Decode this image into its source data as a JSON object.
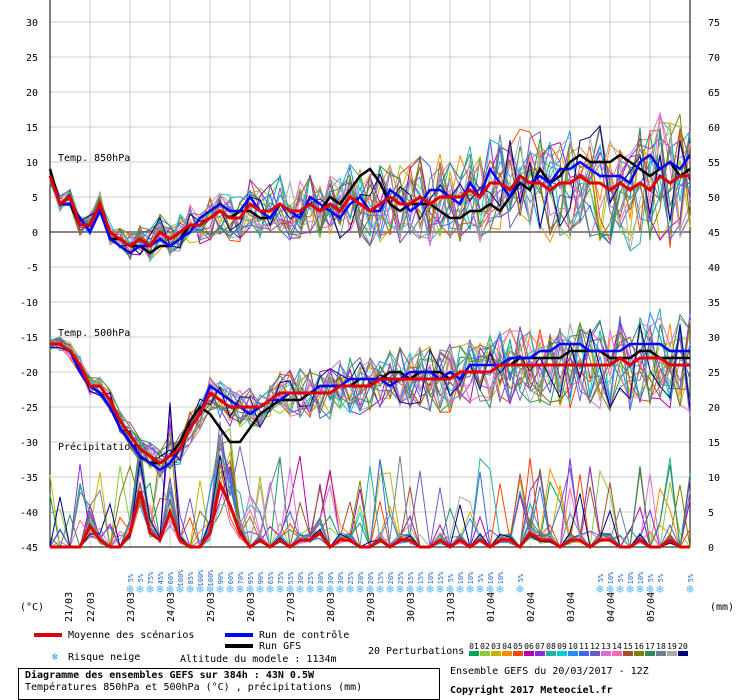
{
  "chart_data": {
    "type": "line",
    "title": "Diagramme des ensembles GEFS sur 384h : 43N 0.5W",
    "subtitle": "Températures 850hPa et 500hPa (°C) , précipitations (mm)",
    "left_axis_label": "(°C)",
    "right_axis_label": "(mm)",
    "left_ticks": [
      30,
      25,
      20,
      15,
      10,
      5,
      0,
      -5,
      -10,
      -15,
      -20,
      -25,
      -30,
      -35,
      -40,
      -45
    ],
    "right_ticks": [
      75,
      70,
      65,
      60,
      55,
      50,
      45,
      40,
      35,
      30,
      25,
      20,
      15,
      10,
      5,
      0
    ],
    "left_range": [
      -45,
      30
    ],
    "x_labels": [
      "21/03",
      "22/03",
      "23/03",
      "24/03",
      "25/03",
      "26/03",
      "27/03",
      "28/03",
      "29/03",
      "30/03",
      "31/03",
      "01/04",
      "02/04",
      "03/04",
      "04/04",
      "05/04"
    ],
    "section_labels": [
      "Temp. 850hPa",
      "Temp. 500hPa",
      "Précipitations"
    ],
    "mean_850": [
      8,
      4,
      5,
      1,
      1,
      4,
      0,
      -1,
      -2,
      -1,
      -2,
      0,
      -1,
      0,
      1,
      1,
      2,
      3,
      2,
      2,
      4,
      3,
      3,
      4,
      3,
      3,
      4,
      3,
      4,
      3,
      5,
      4,
      3,
      4,
      5,
      4,
      4,
      5,
      4,
      5,
      5,
      5,
      6,
      5,
      7,
      7,
      6,
      8,
      7,
      7,
      6,
      7,
      7,
      8,
      7,
      7,
      6,
      7,
      6,
      7,
      6,
      8,
      7,
      8,
      8
    ],
    "ctrl_850": [
      8,
      4,
      4,
      2,
      0,
      3,
      -1,
      -2,
      -3,
      -2,
      -2,
      -1,
      -2,
      -1,
      0,
      2,
      3,
      4,
      3,
      3,
      5,
      3,
      2,
      4,
      3,
      2,
      5,
      4,
      3,
      2,
      4,
      5,
      3,
      3,
      6,
      5,
      3,
      4,
      6,
      6,
      5,
      4,
      7,
      5,
      9,
      7,
      5,
      8,
      7,
      8,
      7,
      9,
      9,
      10,
      9,
      8,
      8,
      8,
      7,
      10,
      11,
      9,
      10,
      9,
      11
    ],
    "gfs_850": [
      9,
      4,
      4,
      1,
      1,
      4,
      -1,
      -1,
      -2,
      -2,
      -3,
      -2,
      -2,
      -1,
      1,
      1,
      2,
      3,
      2,
      3,
      3,
      2,
      2,
      4,
      3,
      3,
      4,
      3,
      5,
      4,
      6,
      8,
      9,
      7,
      4,
      3,
      4,
      4,
      4,
      3,
      2,
      2,
      3,
      3,
      4,
      3,
      5,
      7,
      6,
      9,
      7,
      8,
      10,
      11,
      10,
      10,
      10,
      11,
      10,
      9,
      8,
      9,
      10,
      8,
      9
    ],
    "mean_500": [
      -16,
      -16,
      -17,
      -19,
      -22,
      -22,
      -24,
      -27,
      -29,
      -31,
      -32,
      -33,
      -32,
      -31,
      -28,
      -26,
      -23,
      -24,
      -25,
      -25,
      -25,
      -25,
      -24,
      -23,
      -23,
      -23,
      -23,
      -23,
      -23,
      -22,
      -22,
      -22,
      -22,
      -21,
      -21,
      -21,
      -21,
      -21,
      -21,
      -21,
      -21,
      -20,
      -20,
      -20,
      -20,
      -19,
      -19,
      -19,
      -19,
      -19,
      -19,
      -19,
      -19,
      -19,
      -19,
      -19,
      -19,
      -18,
      -19,
      -18,
      -18,
      -18,
      -19,
      -19,
      -19
    ],
    "ctrl_500": [
      -16,
      -16,
      -17,
      -20,
      -22,
      -23,
      -25,
      -28,
      -30,
      -32,
      -33,
      -34,
      -33,
      -31,
      -28,
      -26,
      -22,
      -23,
      -24,
      -25,
      -26,
      -25,
      -24,
      -24,
      -23,
      -23,
      -23,
      -22,
      -22,
      -22,
      -21,
      -21,
      -21,
      -21,
      -22,
      -21,
      -20,
      -20,
      -20,
      -21,
      -20,
      -21,
      -19,
      -19,
      -19,
      -19,
      -18,
      -18,
      -18,
      -17,
      -17,
      -16,
      -16,
      -16,
      -17,
      -17,
      -17,
      -17,
      -16,
      -16,
      -16,
      -16,
      -17,
      -17,
      -17
    ],
    "gfs_500": [
      -16,
      -16,
      -17,
      -20,
      -22,
      -23,
      -25,
      -28,
      -30,
      -32,
      -33,
      -33,
      -32,
      -30,
      -27,
      -25,
      -26,
      -28,
      -30,
      -30,
      -28,
      -26,
      -25,
      -24,
      -24,
      -24,
      -23,
      -22,
      -22,
      -22,
      -22,
      -21,
      -21,
      -21,
      -20,
      -20,
      -21,
      -20,
      -20,
      -20,
      -21,
      -20,
      -20,
      -20,
      -20,
      -19,
      -19,
      -18,
      -18,
      -18,
      -18,
      -18,
      -17,
      -17,
      -17,
      -17,
      -18,
      -18,
      -18,
      -17,
      -17,
      -18,
      -18,
      -18,
      -18
    ],
    "mean_precip": [
      0,
      0,
      0,
      0,
      3,
      1,
      0,
      0,
      2,
      8,
      2,
      1,
      5,
      1,
      0,
      0,
      2,
      9,
      6,
      2,
      0,
      1,
      0,
      1,
      0,
      1,
      1,
      2,
      0,
      1,
      1,
      0,
      0,
      1,
      0,
      1,
      1,
      0,
      0,
      1,
      0,
      1,
      0,
      1,
      0,
      1,
      1,
      0,
      2,
      1,
      1,
      0,
      1,
      1,
      0,
      1,
      1,
      0,
      0,
      1,
      0,
      0,
      1,
      0,
      0
    ],
    "snow_risk": [
      {
        "i": 8,
        "p": "5%"
      },
      {
        "i": 9,
        "p": "5%"
      },
      {
        "i": 10,
        "p": "75%"
      },
      {
        "i": 11,
        "p": "45%"
      },
      {
        "i": 12,
        "p": "60%"
      },
      {
        "i": 13,
        "p": "100%"
      },
      {
        "i": 14,
        "p": "85%"
      },
      {
        "i": 15,
        "p": "100%"
      },
      {
        "i": 16,
        "p": "100%"
      },
      {
        "i": 17,
        "p": "90%"
      },
      {
        "i": 18,
        "p": "60%"
      },
      {
        "i": 19,
        "p": "70%"
      },
      {
        "i": 20,
        "p": "95%"
      },
      {
        "i": 21,
        "p": "90%"
      },
      {
        "i": 22,
        "p": "65%"
      },
      {
        "i": 23,
        "p": "75%"
      },
      {
        "i": 24,
        "p": "55%"
      },
      {
        "i": 25,
        "p": "30%"
      },
      {
        "i": 26,
        "p": "25%"
      },
      {
        "i": 27,
        "p": "30%"
      },
      {
        "i": 28,
        "p": "30%"
      },
      {
        "i": 29,
        "p": "30%"
      },
      {
        "i": 30,
        "p": "25%"
      },
      {
        "i": 31,
        "p": "20%"
      },
      {
        "i": 32,
        "p": "20%"
      },
      {
        "i": 33,
        "p": "15%"
      },
      {
        "i": 34,
        "p": "20%"
      },
      {
        "i": 35,
        "p": "25%"
      },
      {
        "i": 36,
        "p": "15%"
      },
      {
        "i": 37,
        "p": "15%"
      },
      {
        "i": 38,
        "p": "10%"
      },
      {
        "i": 39,
        "p": "15%"
      },
      {
        "i": 40,
        "p": "5%"
      },
      {
        "i": 41,
        "p": "10%"
      },
      {
        "i": 42,
        "p": "10%"
      },
      {
        "i": 43,
        "p": "5%"
      },
      {
        "i": 44,
        "p": "10%"
      },
      {
        "i": 45,
        "p": "10%"
      },
      {
        "i": 47,
        "p": "5%"
      },
      {
        "i": 55,
        "p": "5%"
      },
      {
        "i": 56,
        "p": "10%"
      },
      {
        "i": 57,
        "p": "5%"
      },
      {
        "i": 58,
        "p": "10%"
      },
      {
        "i": 59,
        "p": "10%"
      },
      {
        "i": 60,
        "p": "5%"
      },
      {
        "i": 61,
        "p": "5%"
      },
      {
        "i": 64,
        "p": "5%"
      }
    ],
    "perturbation_colors": [
      "#00a651",
      "#8dc63f",
      "#c8b400",
      "#ff8c00",
      "#ff4500",
      "#b000b0",
      "#8a2be2",
      "#20b2aa",
      "#00ced1",
      "#1e90ff",
      "#4169e1",
      "#6a5acd",
      "#da70d6",
      "#ff69b4",
      "#a0522d",
      "#808000",
      "#2e8b57",
      "#708090",
      "#a9a9a9",
      "#000080"
    ]
  },
  "legend": {
    "mean": "Moyenne des scénarios",
    "control": "Run de contrôle",
    "gfs": "Run GFS",
    "snow": "Risque neige",
    "altitude": "Altitude du modele : 1134m",
    "perturbations": "20 Perturbations",
    "pert_numbers": [
      "01",
      "02",
      "03",
      "04",
      "05",
      "06",
      "07",
      "08",
      "09",
      "10",
      "11",
      "12",
      "13",
      "14",
      "15",
      "16",
      "17",
      "18",
      "19",
      "20"
    ],
    "mean_color": "#e00000",
    "control_color": "#0000ff",
    "gfs_color": "#000000"
  },
  "footer": {
    "ensemble": "Ensemble GEFS du 20/03/2017 - 12Z",
    "copyright": "Copyright 2017 Meteociel.fr"
  }
}
